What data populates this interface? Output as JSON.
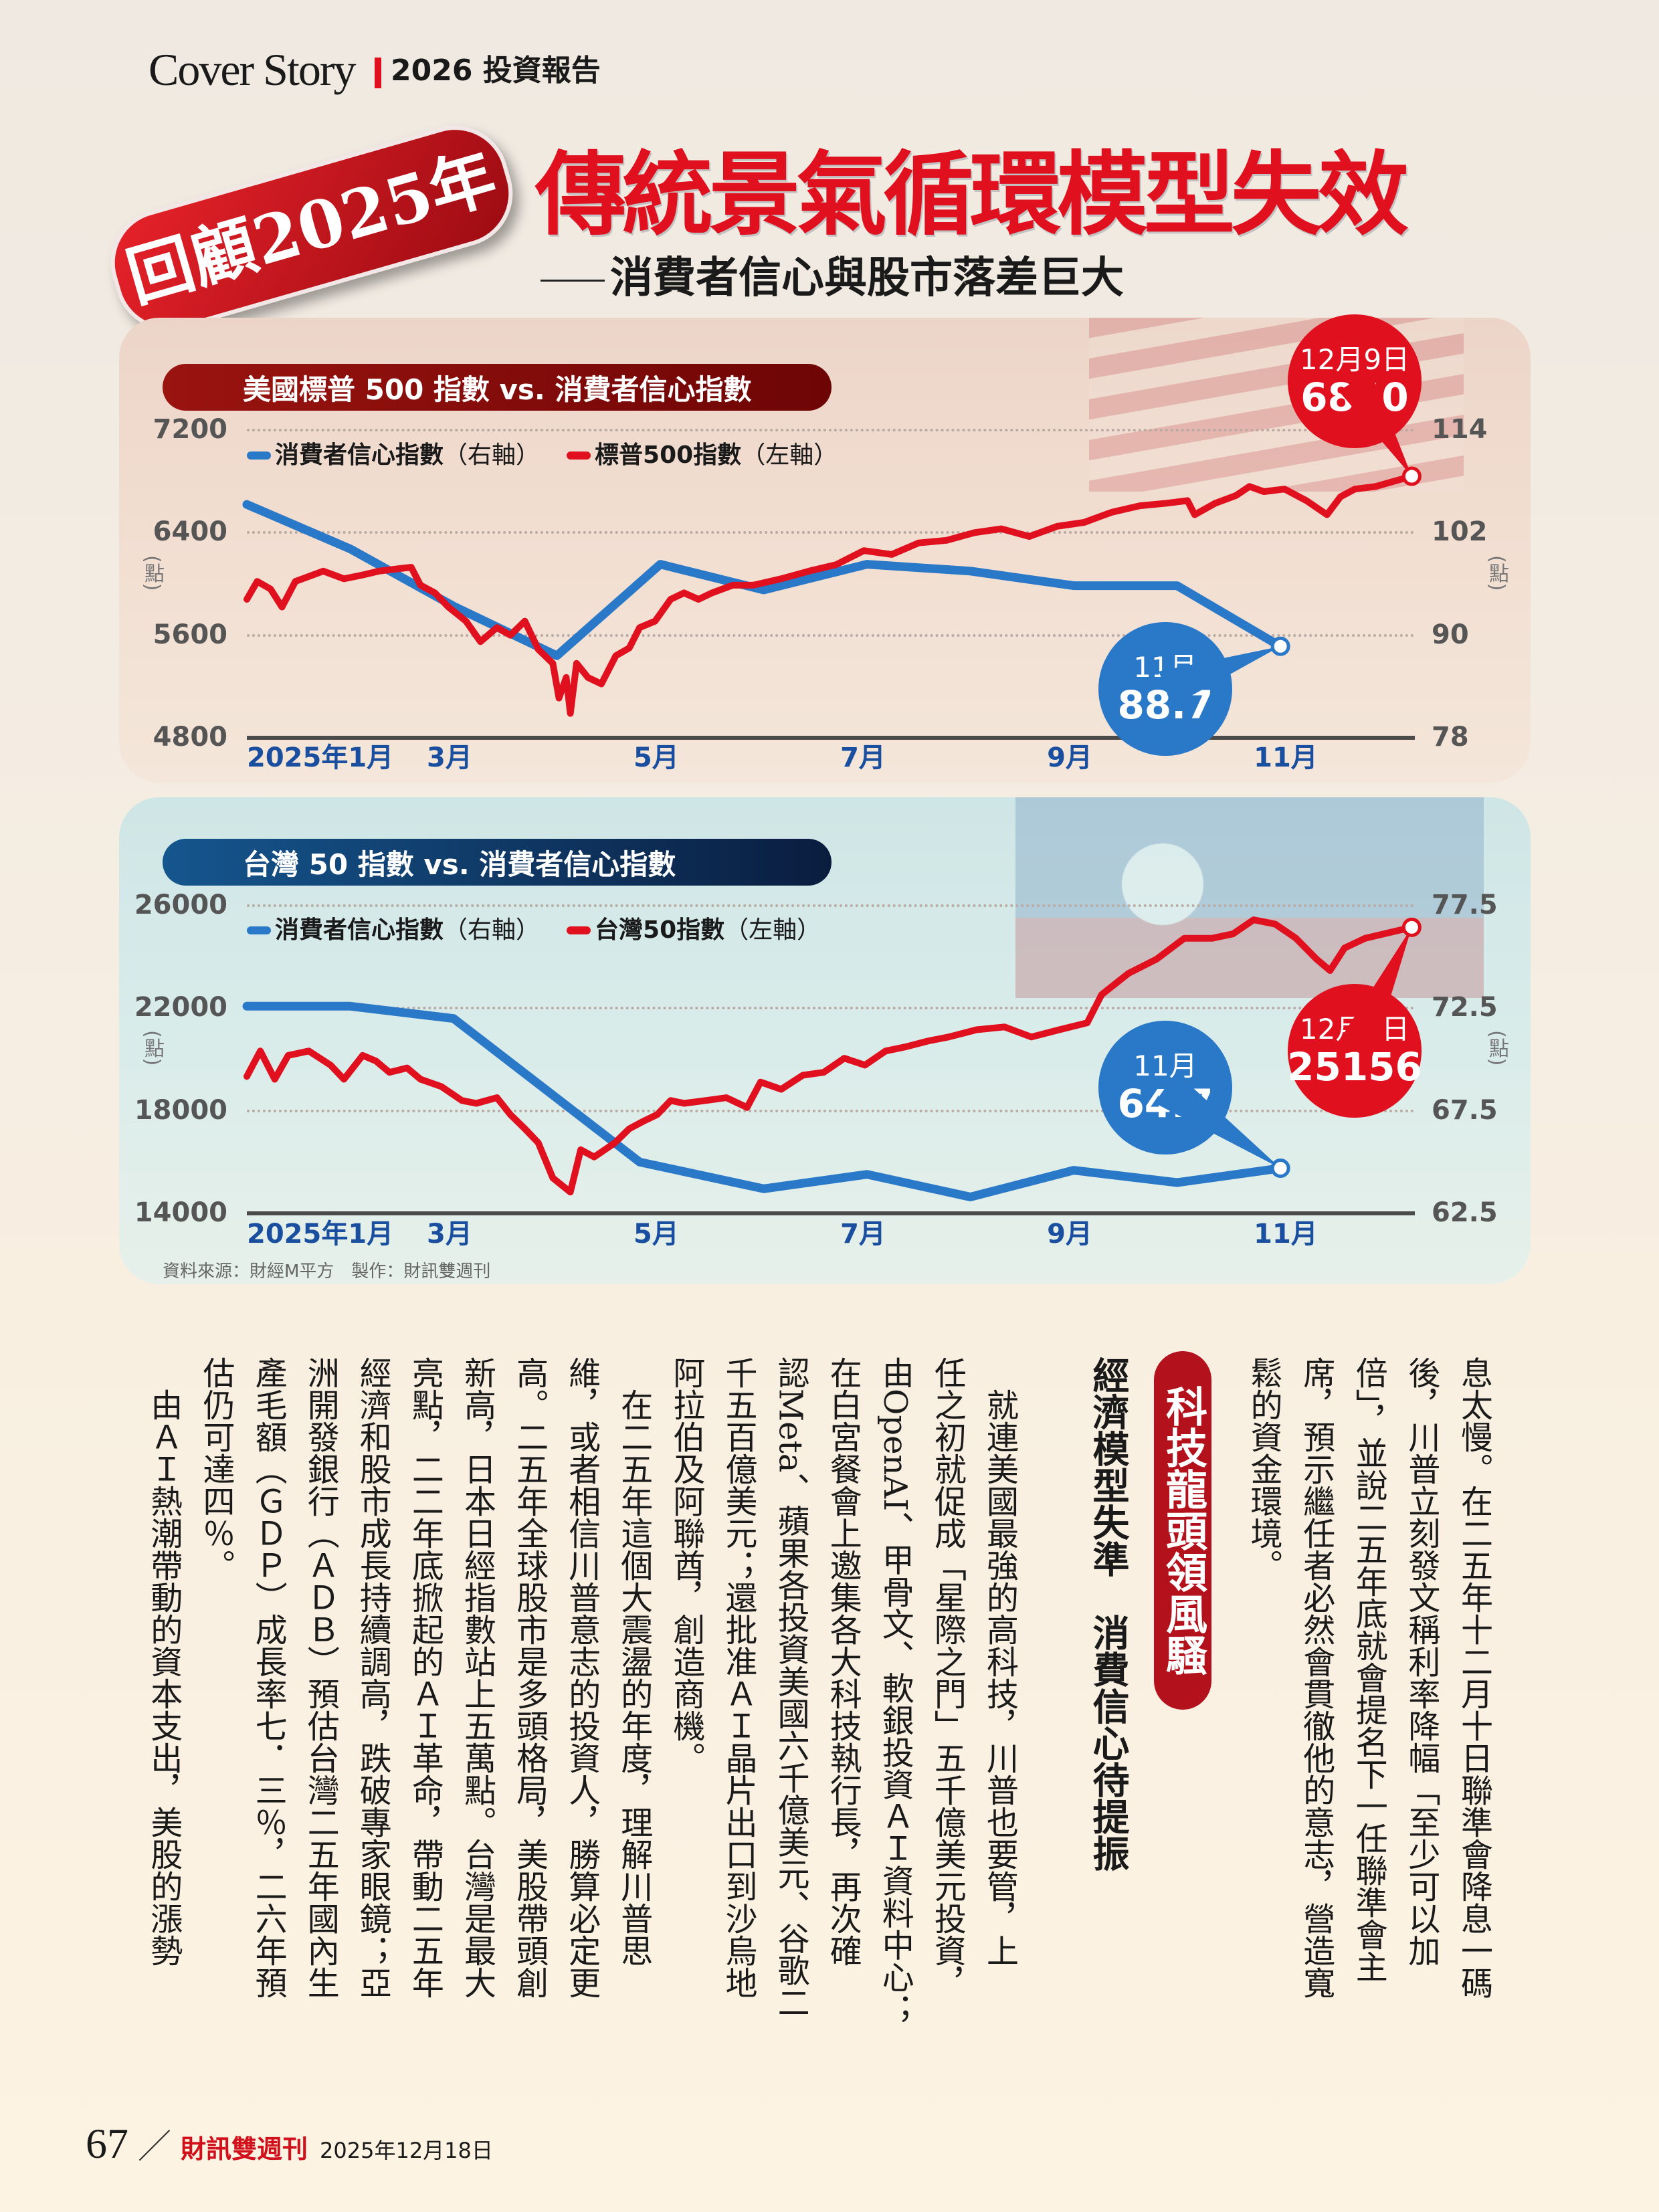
{
  "header": {
    "section": "Cover Story",
    "issue_label": "2026 投資報告"
  },
  "badge": "回顧2025年",
  "title": "傳統景氣循環模型失效",
  "subtitle": "消費者信心與股市落差巨大",
  "colors": {
    "red": "#e0101e",
    "blue": "#2a78c8",
    "month_blue": "#1a4fa0",
    "us_pill": "#8b1010",
    "tw_pill": "#0f2f5e"
  },
  "chart_data": [
    {
      "type": "line",
      "title": "美國標普 500 指數 vs. 消費者信心指數",
      "left_unit": "(點)",
      "right_unit": "(點)",
      "ylim_left": [
        4800,
        7200
      ],
      "ylim_right": [
        78,
        114
      ],
      "left_ticks": [
        "7200",
        "6400",
        "5600",
        "4800"
      ],
      "right_ticks": [
        "114",
        "102",
        "90",
        "78"
      ],
      "xlim_month": [
        1,
        12.3
      ],
      "x_ticks": [
        {
          "month": 1,
          "label": "2025年1月"
        },
        {
          "month": 3,
          "label": "3月"
        },
        {
          "month": 5,
          "label": "5月"
        },
        {
          "month": 7,
          "label": "7月"
        },
        {
          "month": 9,
          "label": "9月"
        },
        {
          "month": 11,
          "label": "11月"
        }
      ],
      "legend": [
        {
          "label": "消費者信心指數",
          "axis": "（右軸）",
          "color": "#2a78c8"
        },
        {
          "label": "標普500指數",
          "axis": "（左軸）",
          "color": "#e0101e"
        }
      ],
      "series": [
        {
          "name": "消費者信心指數",
          "axis": "right",
          "color": "#2a78c8",
          "points": [
            [
              1,
              105.3
            ],
            [
              2,
              100.1
            ],
            [
              3,
              93.4
            ],
            [
              4,
              87.6
            ],
            [
              5,
              98.3
            ],
            [
              6,
              95.3
            ],
            [
              7,
              98.3
            ],
            [
              8,
              97.5
            ],
            [
              9,
              95.8
            ],
            [
              10,
              95.8
            ],
            [
              11,
              88.7
            ]
          ]
        },
        {
          "name": "標普500指數",
          "axis": "left",
          "color": "#e0101e",
          "points": [
            [
              1.0,
              5880
            ],
            [
              1.1,
              6020
            ],
            [
              1.23,
              5960
            ],
            [
              1.34,
              5820
            ],
            [
              1.47,
              6020
            ],
            [
              1.74,
              6100
            ],
            [
              1.94,
              6040
            ],
            [
              2.12,
              6070
            ],
            [
              2.28,
              6100
            ],
            [
              2.48,
              6120
            ],
            [
              2.59,
              6130
            ],
            [
              2.68,
              5990
            ],
            [
              2.82,
              5930
            ],
            [
              2.95,
              5820
            ],
            [
              3.12,
              5710
            ],
            [
              3.26,
              5550
            ],
            [
              3.42,
              5660
            ],
            [
              3.55,
              5600
            ],
            [
              3.69,
              5710
            ],
            [
              3.82,
              5490
            ],
            [
              3.96,
              5380
            ],
            [
              4.02,
              5110
            ],
            [
              4.09,
              5270
            ],
            [
              4.13,
              4990
            ],
            [
              4.19,
              5380
            ],
            [
              4.3,
              5270
            ],
            [
              4.43,
              5220
            ],
            [
              4.57,
              5440
            ],
            [
              4.7,
              5500
            ],
            [
              4.8,
              5660
            ],
            [
              4.95,
              5710
            ],
            [
              5.1,
              5880
            ],
            [
              5.23,
              5930
            ],
            [
              5.37,
              5880
            ],
            [
              5.5,
              5930
            ],
            [
              5.7,
              5990
            ],
            [
              5.9,
              5990
            ],
            [
              6.17,
              6040
            ],
            [
              6.44,
              6100
            ],
            [
              6.7,
              6150
            ],
            [
              6.97,
              6260
            ],
            [
              7.24,
              6230
            ],
            [
              7.5,
              6320
            ],
            [
              7.77,
              6340
            ],
            [
              8.04,
              6400
            ],
            [
              8.3,
              6430
            ],
            [
              8.57,
              6370
            ],
            [
              8.84,
              6450
            ],
            [
              9.1,
              6480
            ],
            [
              9.37,
              6560
            ],
            [
              9.64,
              6610
            ],
            [
              9.9,
              6630
            ],
            [
              10.1,
              6650
            ],
            [
              10.17,
              6540
            ],
            [
              10.37,
              6630
            ],
            [
              10.57,
              6690
            ],
            [
              10.7,
              6760
            ],
            [
              10.84,
              6720
            ],
            [
              11.04,
              6740
            ],
            [
              11.25,
              6650
            ],
            [
              11.45,
              6540
            ],
            [
              11.58,
              6680
            ],
            [
              11.72,
              6740
            ],
            [
              11.92,
              6760
            ],
            [
              12.27,
              6840
            ]
          ]
        }
      ],
      "callouts": [
        {
          "series": 1,
          "date": "12月9日",
          "value": "6840",
          "color": "#e0101e"
        },
        {
          "series": 0,
          "date": "11月",
          "value": "88.7",
          "color": "#2a78c8"
        }
      ]
    },
    {
      "type": "line",
      "title": "台灣 50 指數 vs. 消費者信心指數",
      "left_unit": "(點)",
      "right_unit": "(點)",
      "ylim_left": [
        14000,
        26000
      ],
      "ylim_right": [
        62.5,
        77.5
      ],
      "left_ticks": [
        "26000",
        "22000",
        "18000",
        "14000"
      ],
      "right_ticks": [
        "77.5",
        "72.5",
        "67.5",
        "62.5"
      ],
      "xlim_month": [
        1,
        12.3
      ],
      "x_ticks": [
        {
          "month": 1,
          "label": "2025年1月"
        },
        {
          "month": 3,
          "label": "3月"
        },
        {
          "month": 5,
          "label": "5月"
        },
        {
          "month": 7,
          "label": "7月"
        },
        {
          "month": 9,
          "label": "9月"
        },
        {
          "month": 11,
          "label": "11月"
        }
      ],
      "legend": [
        {
          "label": "消費者信心指數",
          "axis": "（右軸）",
          "color": "#2a78c8"
        },
        {
          "label": "台灣50指數",
          "axis": "（左軸）",
          "color": "#e0101e"
        }
      ],
      "series": [
        {
          "name": "消費者信心指數",
          "axis": "right",
          "color": "#2a78c8",
          "points": [
            [
              1,
              72.6
            ],
            [
              2,
              72.6
            ],
            [
              3,
              72.0
            ],
            [
              4.8,
              65.0
            ],
            [
              6,
              63.7
            ],
            [
              7,
              64.4
            ],
            [
              8,
              63.3
            ],
            [
              9,
              64.6
            ],
            [
              10,
              64.0
            ],
            [
              11,
              64.7
            ]
          ]
        },
        {
          "name": "台灣50指數",
          "axis": "left",
          "color": "#e0101e",
          "points": [
            [
              1,
              19340
            ],
            [
              1.13,
              20330
            ],
            [
              1.27,
              19230
            ],
            [
              1.4,
              20160
            ],
            [
              1.6,
              20330
            ],
            [
              1.81,
              19780
            ],
            [
              1.94,
              19230
            ],
            [
              2.12,
              20160
            ],
            [
              2.25,
              19940
            ],
            [
              2.38,
              19500
            ],
            [
              2.55,
              19670
            ],
            [
              2.68,
              19230
            ],
            [
              2.88,
              18950
            ],
            [
              3.08,
              18400
            ],
            [
              3.22,
              18290
            ],
            [
              3.42,
              18510
            ],
            [
              3.55,
              17850
            ],
            [
              3.69,
              17300
            ],
            [
              3.82,
              16750
            ],
            [
              3.96,
              15380
            ],
            [
              4.13,
              14830
            ],
            [
              4.23,
              16480
            ],
            [
              4.36,
              16200
            ],
            [
              4.56,
              16750
            ],
            [
              4.7,
              17300
            ],
            [
              4.83,
              17580
            ],
            [
              4.97,
              17850
            ],
            [
              5.1,
              18400
            ],
            [
              5.23,
              18290
            ],
            [
              5.44,
              18400
            ],
            [
              5.64,
              18510
            ],
            [
              5.84,
              18130
            ],
            [
              5.97,
              19120
            ],
            [
              6.17,
              18840
            ],
            [
              6.38,
              19390
            ],
            [
              6.58,
              19500
            ],
            [
              6.78,
              20050
            ],
            [
              6.98,
              19780
            ],
            [
              7.18,
              20330
            ],
            [
              7.38,
              20500
            ],
            [
              7.59,
              20720
            ],
            [
              7.79,
              20880
            ],
            [
              8.06,
              21160
            ],
            [
              8.33,
              21270
            ],
            [
              8.59,
              20880
            ],
            [
              8.86,
              21160
            ],
            [
              9.13,
              21430
            ],
            [
              9.27,
              22530
            ],
            [
              9.53,
              23360
            ],
            [
              9.8,
              23910
            ],
            [
              10.07,
              24730
            ],
            [
              10.34,
              24730
            ],
            [
              10.54,
              24900
            ],
            [
              10.74,
              25450
            ],
            [
              10.95,
              25280
            ],
            [
              11.15,
              24730
            ],
            [
              11.35,
              23910
            ],
            [
              11.48,
              23470
            ],
            [
              11.62,
              24350
            ],
            [
              11.82,
              24730
            ],
            [
              12.27,
              25156
            ]
          ]
        }
      ],
      "callouts": [
        {
          "series": 1,
          "date": "12月9日",
          "value": "25156",
          "color": "#e0101e"
        },
        {
          "series": 0,
          "date": "11月",
          "value": "64.7",
          "color": "#2a78c8"
        }
      ]
    }
  ],
  "source": "資料來源：財經M平方　製作：財訊雙週刊",
  "article": {
    "right_columns": [
      "息太慢。在二五年十二月十日聯準會降息一碼",
      "後，川普立刻發文稱利率降幅「至少可以加",
      "倍」，並說二五年底就會提名下一任聯準會主",
      "席，預示繼任者必然會貫徹他的意志，營造寬",
      "鬆的資金環境。"
    ],
    "section_heading": "科技龍頭領風騷",
    "section_subheading": "經濟模型失準　消費信心待提振",
    "left_columns": [
      "　就連美國最強的高科技，川普也要管，上",
      "任之初就促成「星際之門」五千億美元投資，",
      "由OpenAI、甲骨文、軟銀投資ＡＩ資料中心；",
      "在白宮餐會上邀集各大科技執行長，再次確",
      "認Meta、蘋果各投資美國六千億美元、谷歌二",
      "千五百億美元；還批准ＡＩ晶片出口到沙烏地",
      "阿拉伯及阿聯酋，創造商機。",
      "　在二五年這個大震盪的年度，理解川普思",
      "維，或者相信川普意志的投資人，勝算必定更",
      "高。二五年全球股市是多頭格局，美股帶頭創",
      "新高，日本日經指數站上五萬點。台灣是最大",
      "亮點，二二年底掀起的ＡＩ革命，帶動二五年",
      "經濟和股市成長持續調高，跌破專家眼鏡；亞",
      "洲開發銀行（ＡＤＢ）預估台灣二五年國內生",
      "產毛額（ＧＤＰ）成長率七．三％，二六年預",
      "估仍可達四％。",
      "　由ＡＩ熱潮帶動的資本支出，美股的漲勢"
    ]
  },
  "footer": {
    "page": "67",
    "slash": "／",
    "magazine": "財訊雙週刊",
    "date": "2025年12月18日"
  }
}
